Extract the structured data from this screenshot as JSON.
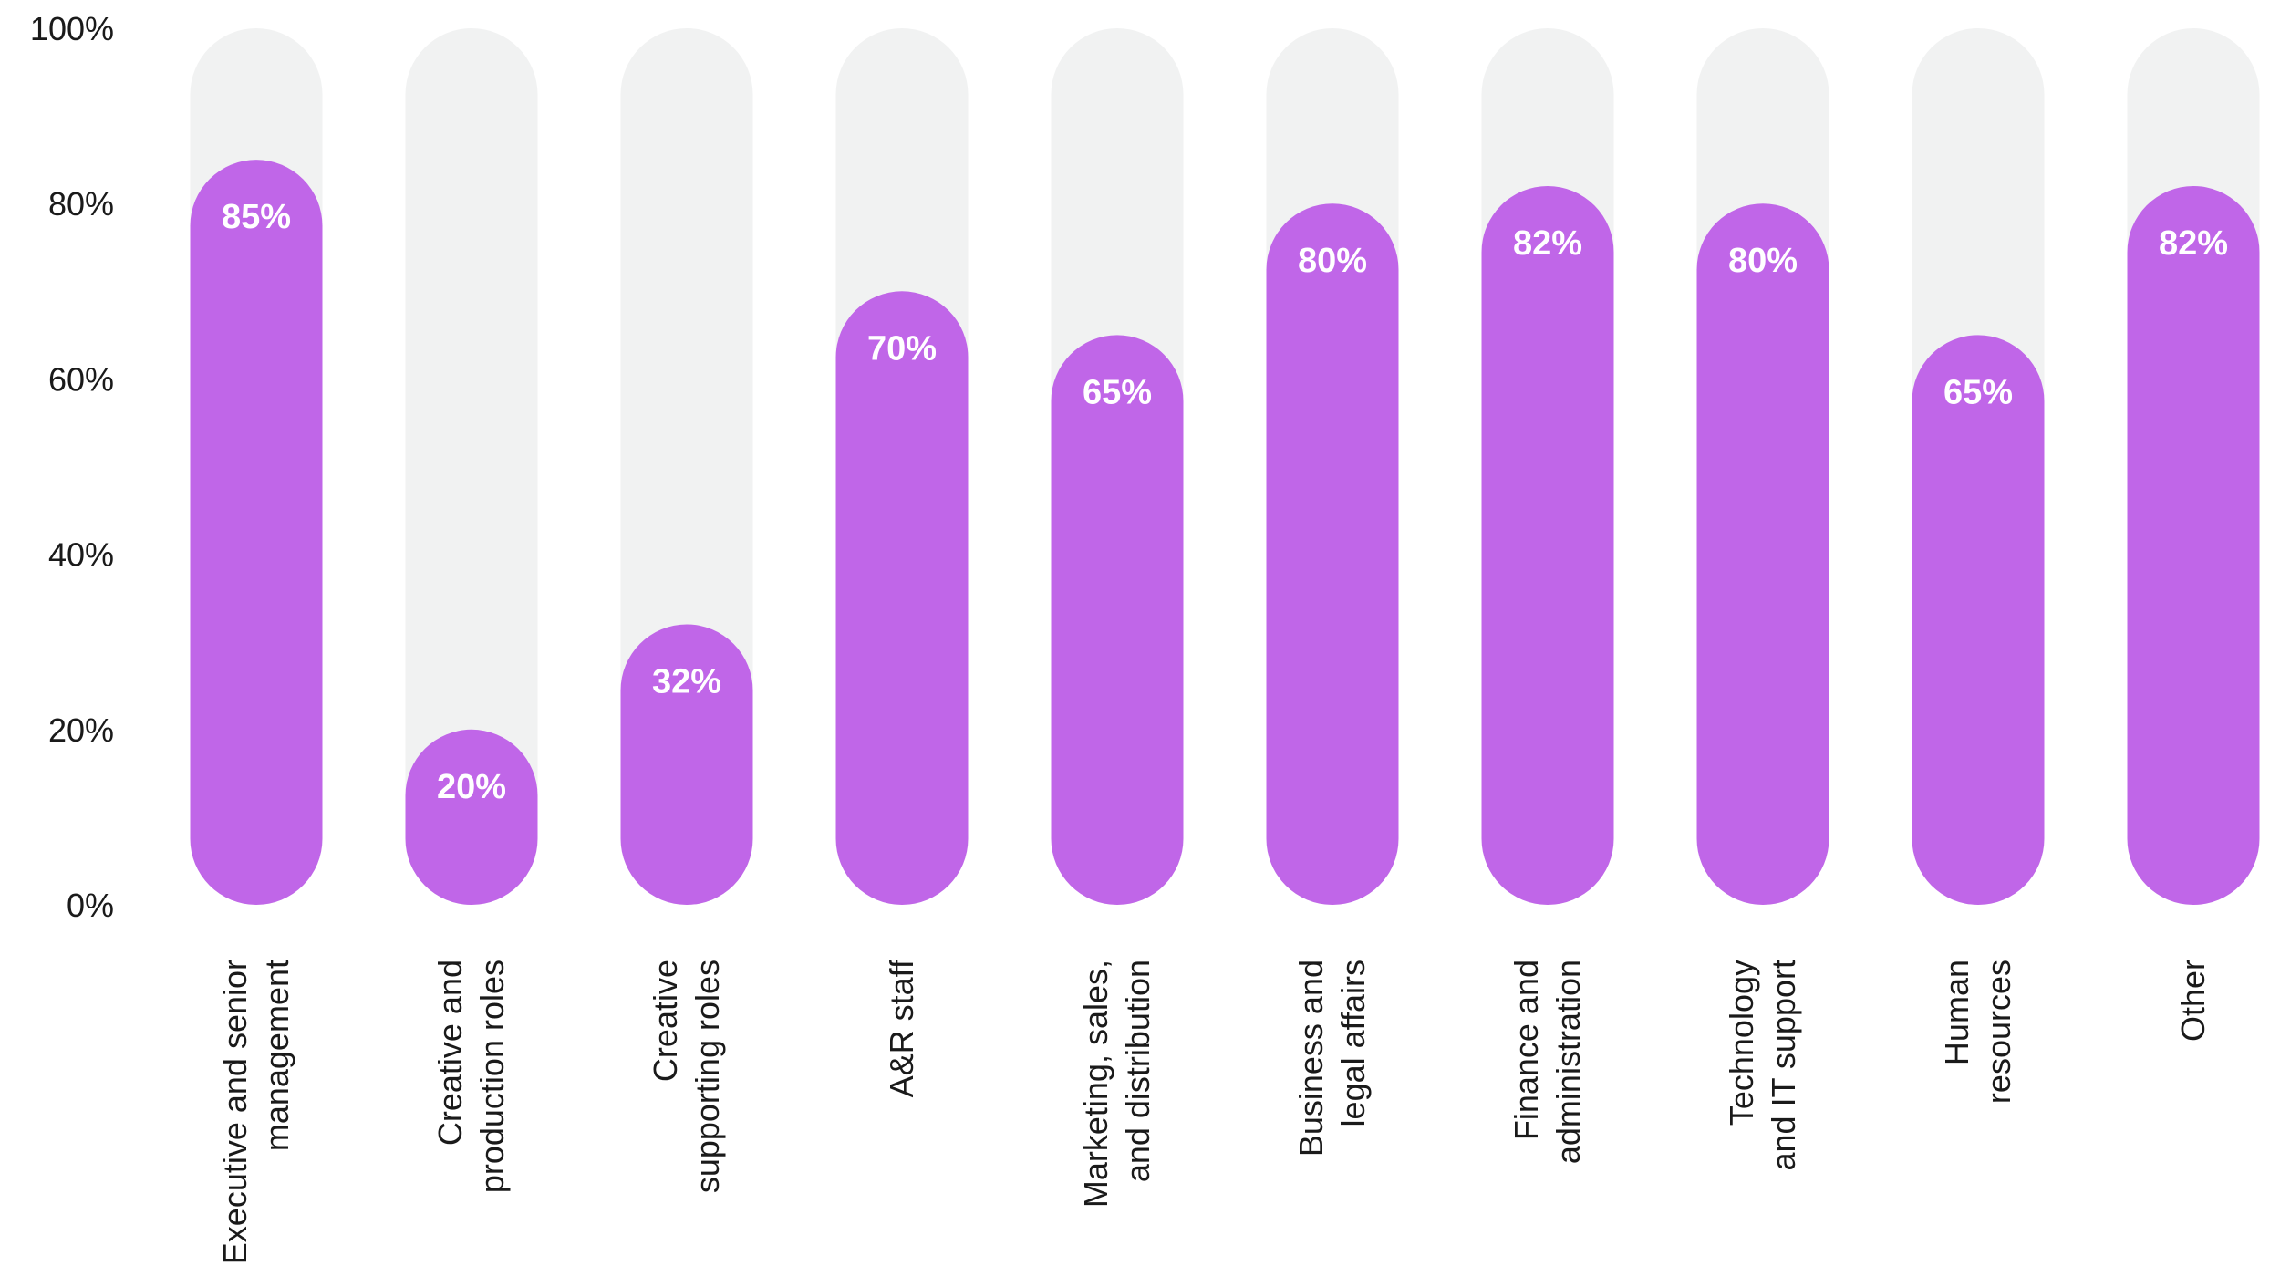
{
  "chart_data": {
    "type": "bar",
    "title": "",
    "xlabel": "",
    "ylabel": "",
    "ylim": [
      0,
      100
    ],
    "yticks": [
      "0%",
      "20%",
      "40%",
      "60%",
      "80%",
      "100%"
    ],
    "ytick_values": [
      0,
      20,
      40,
      60,
      80,
      100
    ],
    "categories": [
      [
        "Executive and senior",
        "management"
      ],
      [
        "Creative and",
        "production roles"
      ],
      [
        "Creative",
        "supporting roles"
      ],
      [
        "A&R staff"
      ],
      [
        "Marketing, sales,",
        "and distribution"
      ],
      [
        "Business and",
        "legal affairs"
      ],
      [
        "Finance and",
        "administration"
      ],
      [
        "Technology",
        "and IT support"
      ],
      [
        "Human",
        "resources"
      ],
      [
        "Other"
      ]
    ],
    "values": [
      85,
      20,
      32,
      70,
      65,
      80,
      82,
      80,
      65,
      82
    ],
    "value_labels": [
      "85%",
      "20%",
      "32%",
      "70%",
      "65%",
      "80%",
      "82%",
      "80%",
      "65%",
      "82%"
    ],
    "colors": {
      "bar": "#c066e8",
      "track": "#f1f2f2",
      "text": "#1a1a1a",
      "value_text": "#ffffff"
    }
  }
}
